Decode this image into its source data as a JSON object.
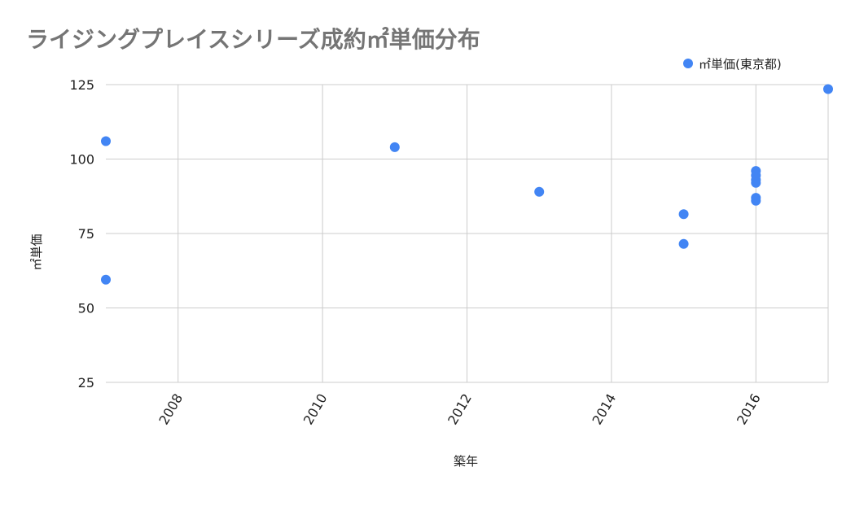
{
  "chart_data": {
    "type": "scatter",
    "title": "ライジングプレイスシリーズ成約㎡単価分布",
    "xlabel": "築年",
    "ylabel": "㎡単価",
    "xlim": [
      2007,
      2017
    ],
    "ylim": [
      25,
      125
    ],
    "xticks": [
      "2008",
      "2010",
      "2012",
      "2014",
      "2016"
    ],
    "yticks": [
      "25",
      "50",
      "75",
      "100",
      "125"
    ],
    "grid": true,
    "legend_position": "top-right",
    "series": [
      {
        "name": "㎡単価(東京都)",
        "color": "#4285f4",
        "points": [
          {
            "x": 2007,
            "y": 106
          },
          {
            "x": 2007,
            "y": 59.5
          },
          {
            "x": 2011,
            "y": 104
          },
          {
            "x": 2013,
            "y": 89
          },
          {
            "x": 2015,
            "y": 81.5
          },
          {
            "x": 2015,
            "y": 71.5
          },
          {
            "x": 2016,
            "y": 96
          },
          {
            "x": 2016,
            "y": 94.5
          },
          {
            "x": 2016,
            "y": 93
          },
          {
            "x": 2016,
            "y": 92
          },
          {
            "x": 2016,
            "y": 87
          },
          {
            "x": 2016,
            "y": 86
          },
          {
            "x": 2017,
            "y": 123.5
          }
        ]
      }
    ]
  }
}
